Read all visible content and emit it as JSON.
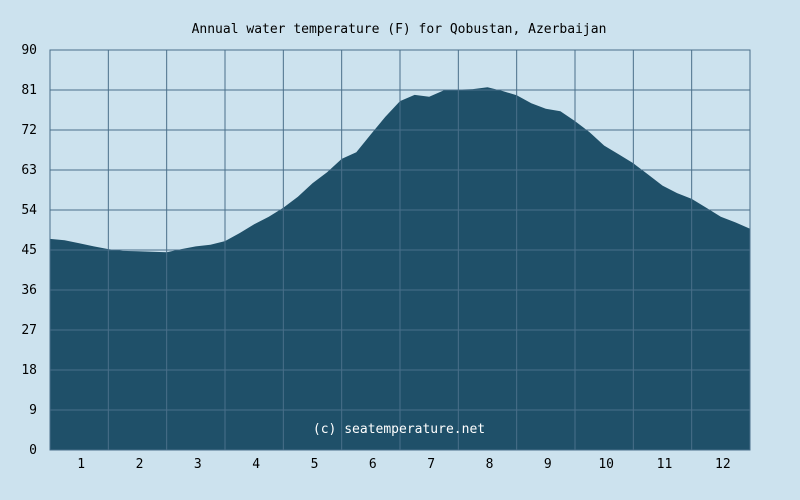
{
  "chart_data": {
    "type": "area",
    "title": "Annual water temperature (F) for Qobustan, Azerbaijan",
    "credit": "(c) seatemperature.net",
    "xlabel": "",
    "ylabel": "",
    "ylim": [
      0,
      90
    ],
    "yticks": [
      0,
      9,
      18,
      27,
      36,
      45,
      54,
      63,
      72,
      81,
      90
    ],
    "xlim": [
      0.5,
      12.5
    ],
    "xticks": [
      "1",
      "2",
      "3",
      "4",
      "5",
      "6",
      "7",
      "8",
      "9",
      "10",
      "11",
      "12"
    ],
    "grid": true,
    "series": [
      {
        "x": [
          0.5,
          0.75,
          1.0,
          1.25,
          1.5,
          1.75,
          2.0,
          2.25,
          2.5,
          2.75,
          3.0,
          3.25,
          3.5,
          3.75,
          4.0,
          4.25,
          4.5,
          4.75,
          5.0,
          5.25,
          5.5,
          5.75,
          6.0,
          6.25,
          6.5,
          6.75,
          7.0,
          7.25,
          7.5,
          7.75,
          8.0,
          8.25,
          8.5,
          8.75,
          9.0,
          9.25,
          9.5,
          9.75,
          10.0,
          10.25,
          10.5,
          10.75,
          11.0,
          11.25,
          11.5,
          11.75,
          12.0,
          12.25,
          12.5
        ],
        "values": [
          47.5,
          47.2,
          46.5,
          45.8,
          45.2,
          44.8,
          44.7,
          44.6,
          44.5,
          45.2,
          45.8,
          46.2,
          47.0,
          48.8,
          50.8,
          52.5,
          54.5,
          57.0,
          60.0,
          62.5,
          65.5,
          67.0,
          71.0,
          75.0,
          78.5,
          79.9,
          79.5,
          80.9,
          81.1,
          81.2,
          81.6,
          80.8,
          79.8,
          78.0,
          76.8,
          76.2,
          74.0,
          71.5,
          68.5,
          66.5,
          64.5,
          62.0,
          59.5,
          57.8,
          56.5,
          54.5,
          52.5,
          51.2,
          49.8
        ]
      }
    ],
    "colors": {
      "background": "#cce2ee",
      "area_fill": "#1f5069",
      "grid": "#4a6f8a"
    }
  }
}
